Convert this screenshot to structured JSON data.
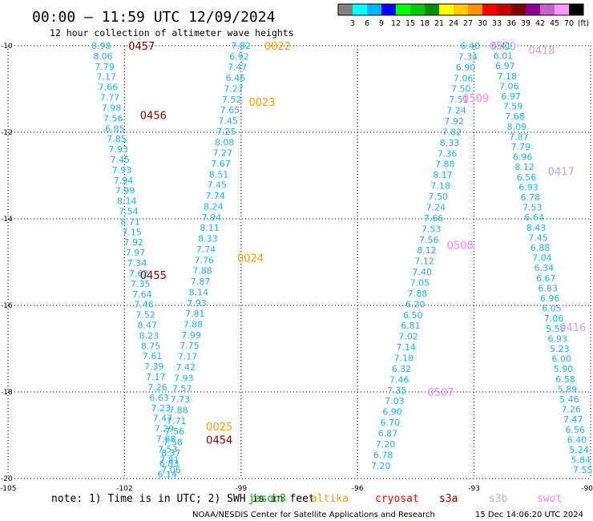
{
  "header": {
    "title": "00:00 – 11:59 UTC 12/09/2024",
    "subtitle": "12 hour collection of altimeter wave heights"
  },
  "colorbar": {
    "labels": [
      "3",
      "6",
      "9",
      "12",
      "15",
      "18",
      "21",
      "24",
      "27",
      "30",
      "33",
      "36",
      "39",
      "42",
      "45",
      "70",
      "(ft)"
    ],
    "colors": [
      "#808080",
      "#00ffff",
      "#00b4ff",
      "#0000ff",
      "#00ff00",
      "#00c800",
      "#008c00",
      "#ffff00",
      "#ffc800",
      "#ff9600",
      "#ff0000",
      "#c80000",
      "#800000",
      "#8c008c",
      "#c864c8",
      "#ff96ff",
      "#000000"
    ]
  },
  "footer": {
    "note": "note:  1) Time is in UTC;  2) SWH is in feet",
    "credit": "NOAA/NESDIS Center for Satellite Applications and Research",
    "timestamp": "15 Dec 14:06:20 UTC 2024"
  },
  "missions": [
    {
      "name": "jason3",
      "color": "#00aa00"
    },
    {
      "name": "altika",
      "color": "#ff9900"
    },
    {
      "name": "cryosat",
      "color": "#ff0000"
    },
    {
      "name": "s3a",
      "color": "#800000"
    },
    {
      "name": "s3b",
      "color": "#c8a0e6"
    },
    {
      "name": "swot",
      "color": "#ff80e0"
    }
  ],
  "chart_data": {
    "type": "scatter",
    "title": "00:00 – 11:59 UTC 12/09/2024",
    "xlim": [
      -105,
      -90
    ],
    "ylim": [
      -20,
      -10
    ],
    "x_ticks": [
      "-105",
      "-102",
      "-99",
      "-96",
      "-93",
      "-90"
    ],
    "y_ticks": [
      "-10",
      "-12",
      "-14",
      "-16",
      "-18",
      "-20"
    ],
    "units": "ft",
    "grid": true,
    "value_color": "#20b0e8",
    "tracks": [
      {
        "x0": -102.6,
        "y0": -10.0,
        "x1": -100.8,
        "y1": -19.8,
        "values": [
          "8.98",
          "8.06",
          "7.79",
          "7.17",
          "7.66",
          "7.77",
          "7.98",
          "7.56",
          "6.85",
          "7.85",
          "7.93",
          "7.45",
          "7.93",
          "7.94",
          "7.99",
          "8.14",
          "7.54",
          "8.71",
          "7.15",
          "7.92",
          "7.97",
          "7.34",
          "7.62",
          "7.35",
          "7.64",
          "7.46",
          "7.52",
          "8.47",
          "8.23",
          "8.75",
          "7.61",
          "7.39",
          "7.17",
          "7.26",
          "6.63",
          "7.23",
          "7.47",
          "7.29",
          "7.88",
          "7.53",
          "7.81",
          "7.06"
        ]
      },
      {
        "x0": -99.0,
        "y0": -10.0,
        "x1": -100.9,
        "y1": -19.9,
        "values": [
          "7.82",
          "6.92",
          "7.47",
          "6.46",
          "7.27",
          "7.52",
          "7.65",
          "7.45",
          "7.25",
          "8.08",
          "7.27",
          "7.67",
          "8.51",
          "7.45",
          "7.74",
          "8.24",
          "7.94",
          "8.11",
          "8.33",
          "7.74",
          "7.76",
          "7.88",
          "7.87",
          "8.14",
          "7.93",
          "7.81",
          "7.88",
          "7.99",
          "7.75",
          "7.17",
          "7.42",
          "7.93",
          "7.57",
          "7.73",
          "7.88",
          "7.71",
          "7.56",
          "7.58",
          "8.37",
          "6.83",
          "6.14"
        ]
      },
      {
        "x0": -93.1,
        "y0": -10.0,
        "x1": -95.4,
        "y1": -19.7,
        "values": [
          "6.40",
          "7.34",
          "6.90",
          "7.06",
          "7.50",
          "7.51",
          "7.24",
          "7.92",
          "7.82",
          "8.33",
          "7.36",
          "7.88",
          "8.17",
          "7.18",
          "7.50",
          "7.24",
          "7.66",
          "7.53",
          "7.56",
          "8.12",
          "7.12",
          "7.40",
          "7.05",
          "7.88",
          "6.20",
          "6.50",
          "6.81",
          "7.02",
          "7.14",
          "7.18",
          "6.32",
          "7.46",
          "7.35",
          "7.03",
          "6.90",
          "6.70",
          "6.87",
          "7.20",
          "6.78",
          "7.20"
        ]
      },
      {
        "x0": -92.3,
        "y0": -10.0,
        "x1": -90.2,
        "y1": -19.8,
        "values": [
          "6.41",
          "6.01",
          "6.97",
          "7.18",
          "7.06",
          "6.97",
          "7.59",
          "7.68",
          "8.09",
          "7.87",
          "7.79",
          "6.96",
          "8.12",
          "6.56",
          "6.93",
          "6.78",
          "7.53",
          "6.64",
          "8.43",
          "7.45",
          "6.88",
          "7.04",
          "6.34",
          "6.67",
          "6.83",
          "6.96",
          "6.05",
          "7.06",
          "5.56",
          "6.93",
          "5.23",
          "6.00",
          "5.90",
          "6.58",
          "5.89",
          "5.46",
          "7.26",
          "7.47",
          "6.56",
          "6.40",
          "5.24",
          "5.84",
          "7.55"
        ]
      }
    ],
    "pass_labels": [
      {
        "text": "0457",
        "x": -101.9,
        "y": -10.0,
        "mission": "s3a"
      },
      {
        "text": "0456",
        "x": -101.6,
        "y": -11.6,
        "mission": "s3a"
      },
      {
        "text": "0455",
        "x": -101.6,
        "y": -15.3,
        "mission": "s3a"
      },
      {
        "text": "0454",
        "x": -99.9,
        "y": -19.1,
        "mission": "s3a"
      },
      {
        "text": "0022",
        "x": -98.4,
        "y": -10.0,
        "mission": "altika"
      },
      {
        "text": "0023",
        "x": -98.8,
        "y": -11.3,
        "mission": "altika"
      },
      {
        "text": "0024",
        "x": -99.1,
        "y": -14.9,
        "mission": "altika"
      },
      {
        "text": "0025",
        "x": -99.9,
        "y": -18.8,
        "mission": "altika"
      },
      {
        "text": "0510",
        "x": -92.6,
        "y": -10.0,
        "mission": "swot"
      },
      {
        "text": "0509",
        "x": -93.3,
        "y": -11.2,
        "mission": "swot"
      },
      {
        "text": "0508",
        "x": -93.7,
        "y": -14.6,
        "mission": "swot"
      },
      {
        "text": "0507",
        "x": -94.2,
        "y": -18.0,
        "mission": "swot"
      },
      {
        "text": "0418",
        "x": -91.6,
        "y": -10.1,
        "mission": "s3b"
      },
      {
        "text": "0417",
        "x": -91.1,
        "y": -12.9,
        "mission": "s3b"
      },
      {
        "text": "0416",
        "x": -90.8,
        "y": -16.5,
        "mission": "s3b"
      }
    ]
  }
}
